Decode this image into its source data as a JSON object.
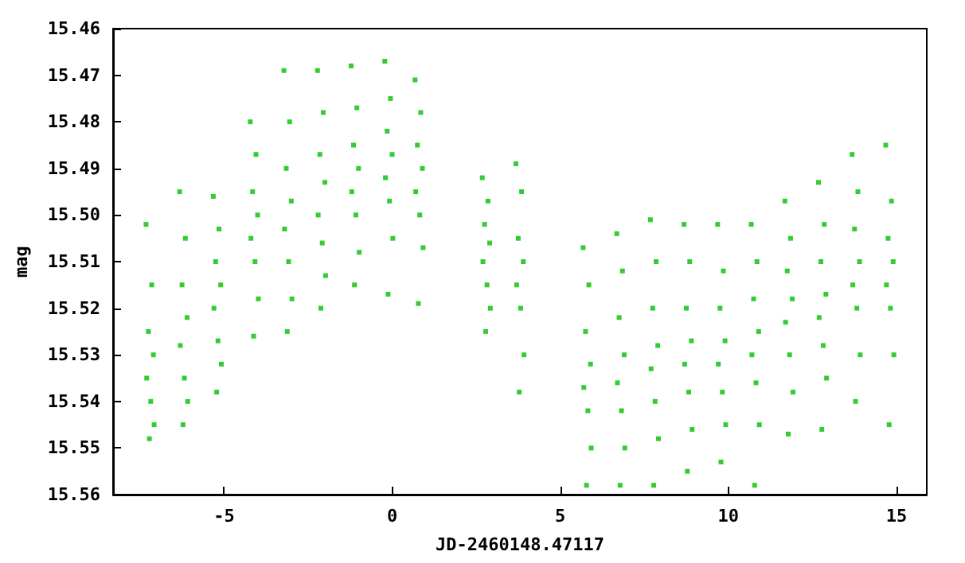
{
  "chart_data": {
    "type": "scatter",
    "xlabel": "JD-2460148.47117",
    "ylabel": "mag",
    "marker": "square",
    "grid": false,
    "xlim": [
      -8.3,
      15.9
    ],
    "xticks": [
      -5,
      0,
      5,
      10,
      15
    ],
    "ylim": [
      15.56,
      15.46
    ],
    "yticks": [
      15.46,
      15.47,
      15.48,
      15.49,
      {
        "value": 15.5,
        "label": "15.50"
      },
      15.51,
      15.52,
      15.53,
      15.54,
      15.55,
      15.56
    ],
    "series": [
      {
        "color": "#00c000",
        "x": [
          -7.32,
          -7.15,
          -7.25,
          -7.1,
          -7.3,
          -7.18,
          -7.08,
          -7.22,
          -6.32,
          -6.15,
          -6.25,
          -6.1,
          -6.3,
          -6.18,
          -6.08,
          -6.22,
          -5.32,
          -5.15,
          -5.25,
          -5.1,
          -5.3,
          -5.18,
          -5.08,
          -5.22,
          -4.22,
          -4.05,
          -4.15,
          -4.0,
          -4.2,
          -4.08,
          -3.98,
          -4.12,
          -3.22,
          -3.05,
          -3.15,
          -3.0,
          -3.2,
          -3.08,
          -2.98,
          -3.12,
          -2.22,
          -2.05,
          -2.15,
          -2.0,
          -2.2,
          -2.08,
          -1.98,
          -2.12,
          -1.22,
          -1.05,
          -1.15,
          -1.0,
          -1.2,
          -1.08,
          -0.98,
          -1.12,
          -0.22,
          -0.05,
          -0.15,
          0.0,
          -0.2,
          -0.08,
          0.02,
          -0.12,
          0.68,
          0.85,
          0.75,
          0.9,
          0.7,
          0.82,
          0.92,
          0.78,
          2.68,
          2.85,
          2.75,
          2.9,
          2.7,
          2.82,
          2.92,
          2.78,
          3.68,
          3.85,
          3.75,
          3.9,
          3.7,
          3.82,
          3.92,
          3.78,
          5.68,
          5.85,
          5.75,
          5.9,
          5.7,
          5.82,
          5.92,
          5.78,
          6.68,
          6.85,
          6.75,
          6.9,
          6.7,
          6.82,
          6.92,
          6.78,
          7.68,
          7.85,
          7.75,
          7.9,
          7.7,
          7.82,
          7.92,
          7.78,
          8.68,
          8.85,
          8.75,
          8.9,
          8.7,
          8.82,
          8.92,
          8.78,
          9.68,
          9.85,
          9.75,
          9.9,
          9.7,
          9.82,
          9.92,
          9.78,
          10.68,
          10.85,
          10.75,
          10.9,
          10.7,
          10.82,
          10.92,
          10.78,
          11.68,
          11.85,
          11.75,
          11.9,
          11.7,
          11.82,
          11.92,
          11.78,
          12.68,
          12.85,
          12.75,
          12.9,
          12.7,
          12.82,
          12.92,
          12.78,
          13.68,
          13.85,
          13.75,
          13.9,
          13.7,
          13.82,
          13.92,
          13.78,
          14.68,
          14.85,
          14.75,
          14.9,
          14.7,
          14.82,
          14.92,
          14.78
        ],
        "values": [
          15.502,
          15.515,
          15.525,
          15.53,
          15.535,
          15.54,
          15.545,
          15.548,
          15.495,
          15.505,
          15.515,
          15.522,
          15.528,
          15.535,
          15.54,
          15.545,
          15.496,
          15.503,
          15.51,
          15.515,
          15.52,
          15.527,
          15.532,
          15.538,
          15.48,
          15.487,
          15.495,
          15.5,
          15.505,
          15.51,
          15.518,
          15.526,
          15.469,
          15.48,
          15.49,
          15.497,
          15.503,
          15.51,
          15.518,
          15.525,
          15.469,
          15.478,
          15.487,
          15.493,
          15.5,
          15.506,
          15.513,
          15.52,
          15.468,
          15.477,
          15.485,
          15.49,
          15.495,
          15.5,
          15.508,
          15.515,
          15.467,
          15.475,
          15.482,
          15.487,
          15.492,
          15.497,
          15.505,
          15.517,
          15.471,
          15.478,
          15.485,
          15.49,
          15.495,
          15.5,
          15.507,
          15.519,
          15.492,
          15.497,
          15.502,
          15.506,
          15.51,
          15.515,
          15.52,
          15.525,
          15.489,
          15.495,
          15.505,
          15.51,
          15.515,
          15.52,
          15.53,
          15.538,
          15.507,
          15.515,
          15.525,
          15.532,
          15.537,
          15.542,
          15.55,
          15.558,
          15.504,
          15.512,
          15.522,
          15.53,
          15.536,
          15.542,
          15.55,
          15.558,
          15.501,
          15.51,
          15.52,
          15.528,
          15.533,
          15.54,
          15.548,
          15.558,
          15.502,
          15.51,
          15.52,
          15.527,
          15.532,
          15.538,
          15.546,
          15.555,
          15.502,
          15.512,
          15.52,
          15.527,
          15.532,
          15.538,
          15.545,
          15.553,
          15.502,
          15.51,
          15.518,
          15.525,
          15.53,
          15.536,
          15.545,
          15.558,
          15.497,
          15.505,
          15.512,
          15.518,
          15.523,
          15.53,
          15.538,
          15.547,
          15.493,
          15.502,
          15.51,
          15.517,
          15.522,
          15.528,
          15.535,
          15.546,
          15.487,
          15.495,
          15.503,
          15.51,
          15.515,
          15.52,
          15.53,
          15.54,
          15.485,
          15.497,
          15.505,
          15.51,
          15.515,
          15.52,
          15.53,
          15.545
        ]
      }
    ]
  }
}
